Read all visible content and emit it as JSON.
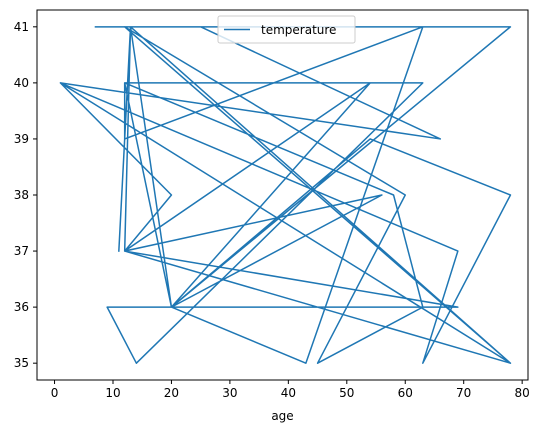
{
  "chart_data": {
    "type": "line",
    "title": "",
    "xlabel": "age",
    "ylabel": "",
    "xlim": [
      -3,
      81
    ],
    "ylim": [
      34.7,
      41.3
    ],
    "xticks": [
      0,
      10,
      20,
      30,
      40,
      50,
      60,
      70,
      80
    ],
    "yticks": [
      35,
      36,
      37,
      38,
      39,
      40,
      41
    ],
    "grid": false,
    "legend": "top-center",
    "series": [
      {
        "name": "temperature",
        "color": "#1f77b4",
        "x": [
          7,
          63,
          78,
          20,
          12,
          20,
          13,
          78,
          12,
          54,
          20,
          43,
          63,
          12,
          12,
          63,
          14,
          9,
          69,
          12,
          20,
          1,
          66,
          25,
          13,
          20,
          12,
          58,
          63,
          45,
          60,
          12,
          78,
          1,
          69,
          63,
          78,
          54,
          20,
          56,
          12,
          13,
          11
        ],
        "y": [
          41,
          41,
          41,
          36,
          40,
          36,
          41,
          35,
          37,
          40,
          36,
          35,
          41,
          39,
          40,
          40,
          35,
          36,
          36,
          37,
          38,
          40,
          39,
          41,
          41,
          36,
          40,
          38,
          36,
          35,
          38,
          41,
          35,
          40,
          37,
          35,
          38,
          39,
          36,
          38,
          37,
          41,
          37
        ]
      }
    ]
  }
}
